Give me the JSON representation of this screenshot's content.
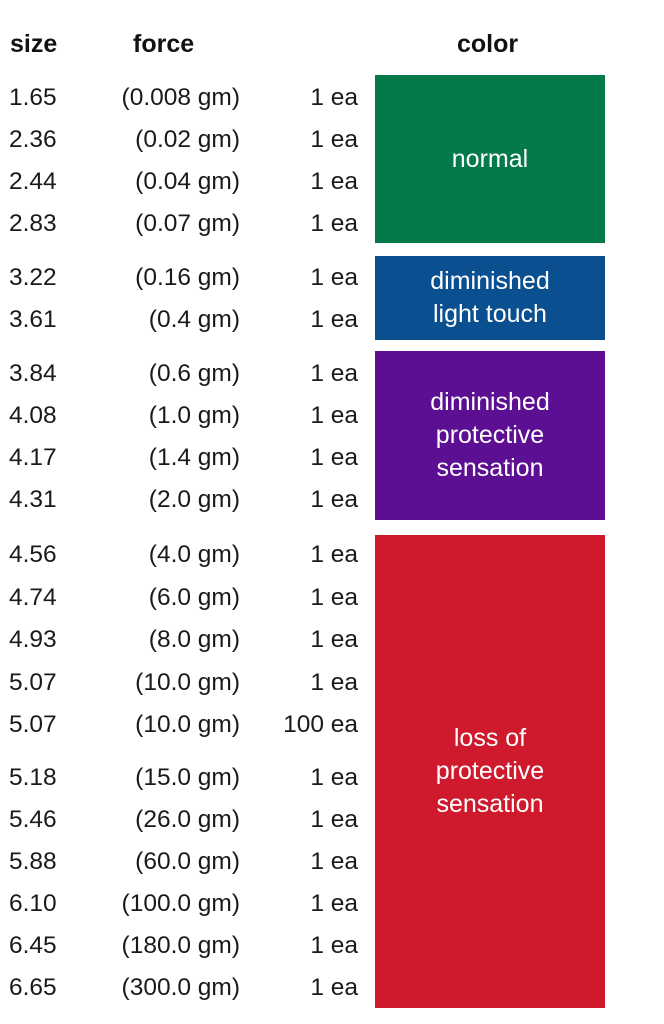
{
  "headers": {
    "size": "size",
    "force": "force",
    "color": "color"
  },
  "rows": [
    {
      "size": "1.65",
      "force": "(0.008 gm)",
      "qty": "1 ea"
    },
    {
      "size": "2.36",
      "force": "(0.02 gm)",
      "qty": "1 ea"
    },
    {
      "size": "2.44",
      "force": "(0.04 gm)",
      "qty": "1 ea"
    },
    {
      "size": "2.83",
      "force": "(0.07 gm)",
      "qty": "1 ea"
    },
    {
      "size": "3.22",
      "force": "(0.16 gm)",
      "qty": "1 ea"
    },
    {
      "size": "3.61",
      "force": "(0.4 gm)",
      "qty": "1 ea"
    },
    {
      "size": "3.84",
      "force": "(0.6 gm)",
      "qty": "1 ea"
    },
    {
      "size": "4.08",
      "force": "(1.0 gm)",
      "qty": "1 ea"
    },
    {
      "size": "4.17",
      "force": "(1.4 gm)",
      "qty": "1 ea"
    },
    {
      "size": "4.31",
      "force": "(2.0 gm)",
      "qty": "1 ea"
    },
    {
      "size": "4.56",
      "force": "(4.0 gm)",
      "qty": "1 ea"
    },
    {
      "size": "4.74",
      "force": "(6.0 gm)",
      "qty": "1 ea"
    },
    {
      "size": "4.93",
      "force": "(8.0 gm)",
      "qty": "1 ea"
    },
    {
      "size": "5.07",
      "force": "(10.0 gm)",
      "qty": "1 ea"
    },
    {
      "size": "5.07",
      "force": "(10.0 gm)",
      "qty": "100 ea"
    },
    {
      "size": "5.18",
      "force": "(15.0 gm)",
      "qty": "1 ea"
    },
    {
      "size": "5.46",
      "force": "(26.0 gm)",
      "qty": "1 ea"
    },
    {
      "size": "5.88",
      "force": "(60.0 gm)",
      "qty": "1 ea"
    },
    {
      "size": "6.10",
      "force": "(100.0 gm)",
      "qty": "1 ea"
    },
    {
      "size": "6.45",
      "force": "(180.0 gm)",
      "qty": "1 ea"
    },
    {
      "size": "6.65",
      "force": "(300.0 gm)",
      "qty": "1 ea"
    }
  ],
  "bands": [
    {
      "label": "normal",
      "color": "#047a4a"
    },
    {
      "label": "diminished\nlight touch",
      "color": "#0a4f8f"
    },
    {
      "label": "diminished\nprotective\nsensation",
      "color": "#5c0f92"
    },
    {
      "label": "loss of\nprotective\nsensation",
      "color": "#cf1a2e"
    }
  ]
}
